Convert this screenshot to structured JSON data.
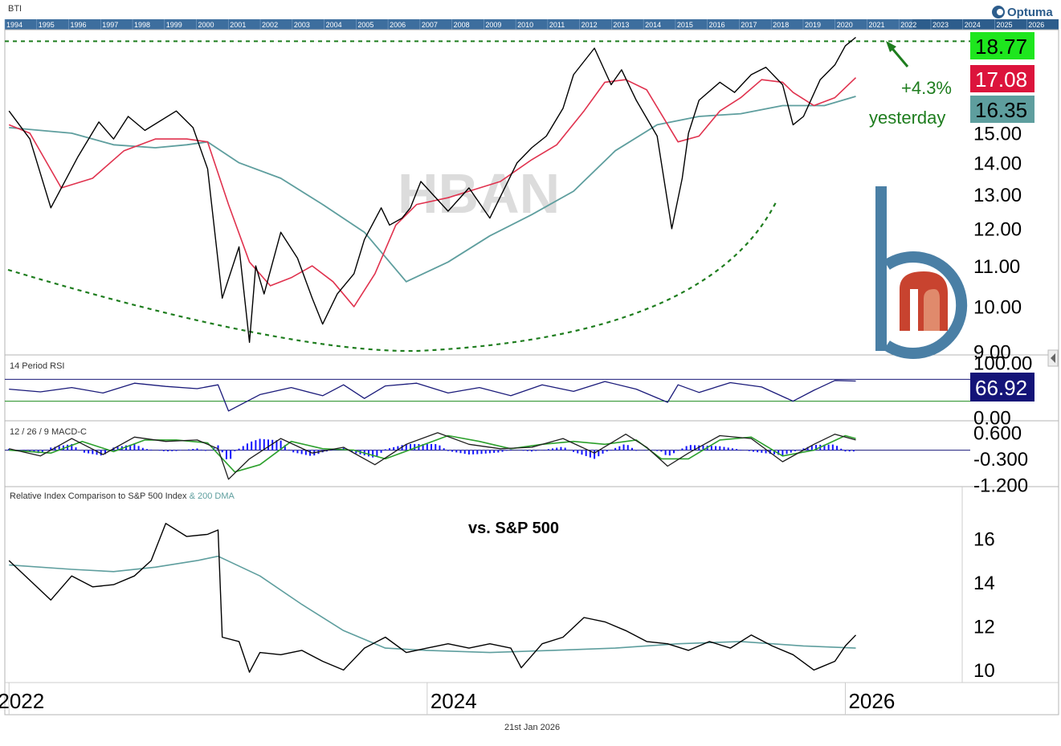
{
  "symbol": "BTI",
  "brand": "Optuma",
  "watermark": "HBAN",
  "date_footer": "21st Jan 2026",
  "colors": {
    "price": "#000000",
    "ma_short": "#e0324e",
    "ma_long": "#5e9e9e",
    "dashed": "#1e7d1e",
    "rsi_line": "#1a1a7a",
    "rsi_upper": "#1a1a7a",
    "rsi_lower": "#1e8c1e",
    "macd_line": "#1e1e1e",
    "macd_signal": "#2ca02c",
    "macd_hist": "#1414ff",
    "badge_last": "#1ee61e",
    "badge_ma_short": "#dc143c",
    "badge_ma_long": "#5e9e9e",
    "badge_rsi": "#141478",
    "timeline_bg": "#2d5d8c",
    "logo_blue": "#4a7fa5",
    "logo_red": "#c8432f",
    "logo_salmon": "#e08a6c"
  },
  "timeline_years": [
    "1994",
    "1995",
    "1996",
    "1997",
    "1998",
    "1999",
    "2000",
    "2001",
    "2002",
    "2003",
    "2004",
    "2005",
    "2006",
    "2007",
    "2008",
    "2009",
    "2010",
    "2011",
    "2012",
    "2013",
    "2014",
    "2015",
    "2016",
    "2017",
    "2018",
    "2019",
    "2020",
    "2021",
    "2022",
    "2023",
    "2024",
    "2025",
    "2026"
  ],
  "annotations": {
    "pct": "+4.3%",
    "when": "yesterday",
    "vs_label": "vs. S&P 500"
  },
  "panel_labels": {
    "rsi": "14 Period RSI",
    "macd": "12 / 26 / 9 MACD-C",
    "rel_main": "Relative Index Comparison to S&P 500 Index",
    "rel_ma": " & 200 DMA"
  },
  "badges": {
    "last": "18.77",
    "ma_short": "17.08",
    "ma_long": "16.35",
    "rsi": "66.92"
  },
  "chart_data": [
    {
      "type": "line",
      "title": "BTI",
      "ylim": [
        9.0,
        19.0
      ],
      "log_scale": true,
      "y_ticks": [
        "9.00",
        "10.00",
        "11.00",
        "12.00",
        "13.00",
        "14.00",
        "15.00",
        "16.00"
      ],
      "resistance_level": 18.6,
      "series": [
        {
          "name": "price",
          "x": [
            2022.0,
            2022.1,
            2022.2,
            2022.33,
            2022.43,
            2022.5,
            2022.57,
            2022.65,
            2022.8,
            2022.88,
            2022.95,
            2023.02,
            2023.1,
            2023.15,
            2023.18,
            2023.22,
            2023.3,
            2023.38,
            2023.45,
            2023.5,
            2023.57,
            2023.65,
            2023.7,
            2023.78,
            2023.82,
            2023.88,
            2023.92,
            2023.97,
            2024.1,
            2024.2,
            2024.3,
            2024.43,
            2024.5,
            2024.57,
            2024.65,
            2024.7,
            2024.8,
            2024.88,
            2024.93,
            2025.0,
            2025.1,
            2025.17,
            2025.22,
            2025.25,
            2025.3,
            2025.4,
            2025.47,
            2025.55,
            2025.62,
            2025.7,
            2025.75,
            2025.8,
            2025.88,
            2025.95,
            2026.0,
            2026.05
          ],
          "y": [
            15.8,
            14.8,
            12.6,
            14.2,
            15.4,
            14.8,
            15.6,
            15.1,
            15.8,
            15.2,
            13.8,
            10.2,
            11.5,
            9.2,
            11.0,
            10.3,
            11.9,
            11.2,
            10.2,
            9.6,
            10.3,
            10.8,
            11.7,
            12.6,
            12.1,
            12.3,
            12.6,
            13.4,
            12.5,
            13.2,
            12.3,
            14.0,
            14.5,
            14.9,
            15.9,
            17.2,
            18.3,
            16.8,
            17.4,
            16.2,
            14.9,
            12.0,
            13.5,
            15.0,
            16.2,
            16.9,
            16.5,
            17.2,
            17.5,
            16.8,
            15.3,
            15.6,
            17.0,
            17.6,
            18.4,
            18.77
          ]
        },
        {
          "name": "ma_short",
          "x": [
            2022.0,
            2022.1,
            2022.25,
            2022.4,
            2022.55,
            2022.7,
            2022.85,
            2022.95,
            2023.05,
            2023.15,
            2023.25,
            2023.35,
            2023.45,
            2023.55,
            2023.65,
            2023.75,
            2023.85,
            2023.95,
            2024.1,
            2024.2,
            2024.35,
            2024.5,
            2024.62,
            2024.75,
            2024.85,
            2024.95,
            2025.05,
            2025.2,
            2025.3,
            2025.4,
            2025.5,
            2025.6,
            2025.7,
            2025.75,
            2025.85,
            2025.95,
            2026.05
          ],
          "y": [
            15.3,
            15.0,
            13.2,
            13.5,
            14.4,
            14.8,
            14.8,
            14.7,
            12.7,
            11.1,
            10.5,
            10.7,
            11.0,
            10.6,
            10.0,
            10.8,
            12.1,
            12.7,
            12.9,
            13.1,
            13.4,
            14.1,
            14.6,
            15.8,
            16.9,
            17.0,
            16.6,
            14.7,
            14.9,
            15.8,
            16.3,
            17.0,
            16.9,
            16.5,
            16.0,
            16.3,
            17.08
          ]
        },
        {
          "name": "ma_long",
          "x": [
            2022.0,
            2022.3,
            2022.5,
            2022.7,
            2022.85,
            2022.95,
            2023.1,
            2023.3,
            2023.5,
            2023.7,
            2023.9,
            2024.1,
            2024.3,
            2024.5,
            2024.7,
            2024.9,
            2025.1,
            2025.3,
            2025.5,
            2025.7,
            2025.9,
            2026.05
          ],
          "y": [
            15.2,
            15.0,
            14.6,
            14.5,
            14.6,
            14.7,
            14.0,
            13.5,
            12.7,
            11.9,
            10.6,
            11.1,
            11.8,
            12.4,
            13.1,
            14.4,
            15.3,
            15.6,
            15.7,
            16.0,
            16.0,
            16.35
          ]
        }
      ]
    },
    {
      "type": "line",
      "title": "14 Period RSI",
      "ylim": [
        0,
        100
      ],
      "y_ticks": [
        "100.00",
        "0.00"
      ],
      "hlines": [
        70,
        30
      ],
      "series": [
        {
          "name": "rsi",
          "x": [
            2022.0,
            2022.15,
            2022.3,
            2022.45,
            2022.6,
            2022.75,
            2022.9,
            2023.0,
            2023.05,
            2023.2,
            2023.35,
            2023.5,
            2023.6,
            2023.7,
            2023.8,
            2023.95,
            2024.1,
            2024.25,
            2024.4,
            2024.55,
            2024.7,
            2024.85,
            2025.0,
            2025.15,
            2025.2,
            2025.3,
            2025.45,
            2025.6,
            2025.75,
            2025.85,
            2025.95,
            2026.05
          ],
          "y": [
            52,
            47,
            55,
            45,
            63,
            57,
            53,
            60,
            12,
            42,
            55,
            40,
            60,
            35,
            58,
            63,
            45,
            55,
            40,
            60,
            48,
            66,
            52,
            28,
            60,
            46,
            64,
            56,
            30,
            50,
            68,
            66.92
          ]
        }
      ]
    },
    {
      "type": "line",
      "title": "12 / 26 / 9 MACD-C",
      "ylim": [
        -1.2,
        0.9
      ],
      "y_ticks": [
        "0.600",
        "-0.300",
        "-1.200"
      ],
      "series": [
        {
          "name": "macd",
          "x": [
            2022.0,
            2022.15,
            2022.3,
            2022.45,
            2022.6,
            2022.75,
            2022.9,
            2023.0,
            2023.05,
            2023.15,
            2023.3,
            2023.45,
            2023.6,
            2023.75,
            2023.9,
            2024.05,
            2024.2,
            2024.35,
            2024.5,
            2024.65,
            2024.8,
            2024.95,
            2025.05,
            2025.15,
            2025.25,
            2025.4,
            2025.55,
            2025.7,
            2025.85,
            2025.95,
            2026.05
          ],
          "y": [
            0.05,
            -0.2,
            0.4,
            -0.15,
            0.45,
            0.3,
            0.35,
            0.05,
            -1.0,
            -0.3,
            0.4,
            -0.1,
            0.1,
            -0.5,
            0.2,
            0.6,
            0.2,
            0.05,
            0.1,
            0.4,
            -0.1,
            0.55,
            0.1,
            -0.55,
            -0.1,
            0.5,
            0.4,
            -0.4,
            0.2,
            0.55,
            0.35
          ]
        },
        {
          "name": "signal",
          "x": [
            2022.0,
            2022.2,
            2022.35,
            2022.5,
            2022.65,
            2022.8,
            2022.95,
            2023.08,
            2023.2,
            2023.35,
            2023.5,
            2023.65,
            2023.8,
            2023.95,
            2024.1,
            2024.25,
            2024.4,
            2024.55,
            2024.7,
            2024.85,
            2025.0,
            2025.12,
            2025.25,
            2025.4,
            2025.55,
            2025.7,
            2025.85,
            2026.0,
            2026.05
          ],
          "y": [
            0.0,
            -0.1,
            0.3,
            -0.05,
            0.35,
            0.35,
            0.25,
            -0.75,
            -0.5,
            0.3,
            0.05,
            0.0,
            -0.3,
            0.1,
            0.5,
            0.3,
            0.05,
            0.2,
            0.3,
            0.2,
            0.35,
            -0.3,
            -0.3,
            0.35,
            0.45,
            -0.2,
            0.0,
            0.5,
            0.4
          ]
        }
      ]
    },
    {
      "type": "line",
      "title": "Relative Index Comparison to S&P 500 Index & 200 DMA",
      "ylim": [
        9.5,
        17.5
      ],
      "y_ticks": [
        "16",
        "14",
        "12",
        "10"
      ],
      "x_ticks": [
        "2022",
        "2024",
        "2026"
      ],
      "annotation": "vs. S&P 500",
      "series": [
        {
          "name": "relative",
          "x": [
            2022.0,
            2022.1,
            2022.2,
            2022.3,
            2022.4,
            2022.5,
            2022.6,
            2022.68,
            2022.75,
            2022.85,
            2022.95,
            2023.0,
            2023.02,
            2023.1,
            2023.15,
            2023.2,
            2023.3,
            2023.4,
            2023.5,
            2023.6,
            2023.65,
            2023.7,
            2023.8,
            2023.9,
            2024.0,
            2024.1,
            2024.2,
            2024.3,
            2024.4,
            2024.45,
            2024.55,
            2024.65,
            2024.75,
            2024.85,
            2024.95,
            2025.05,
            2025.15,
            2025.25,
            2025.35,
            2025.45,
            2025.55,
            2025.65,
            2025.75,
            2025.85,
            2025.95,
            2026.0,
            2026.05
          ],
          "y": [
            15.0,
            14.1,
            13.2,
            14.3,
            13.8,
            13.9,
            14.3,
            15.0,
            16.7,
            16.1,
            16.2,
            16.4,
            11.5,
            11.3,
            9.9,
            10.8,
            10.7,
            10.9,
            10.4,
            10.0,
            10.5,
            11.0,
            11.5,
            10.8,
            11.0,
            11.2,
            11.0,
            11.2,
            11.0,
            10.1,
            11.2,
            11.5,
            12.4,
            12.2,
            11.8,
            11.3,
            11.2,
            10.9,
            11.3,
            11.0,
            11.6,
            11.1,
            10.7,
            10.0,
            10.4,
            11.1,
            11.6
          ]
        },
        {
          "name": "ma",
          "x": [
            2022.0,
            2022.3,
            2022.5,
            2022.7,
            2022.9,
            2023.0,
            2023.2,
            2023.4,
            2023.6,
            2023.8,
            2024.0,
            2024.3,
            2024.6,
            2024.9,
            2025.2,
            2025.5,
            2025.8,
            2026.05
          ],
          "y": [
            14.8,
            14.6,
            14.5,
            14.7,
            15.0,
            15.2,
            14.3,
            13.0,
            11.8,
            11.0,
            10.9,
            10.8,
            10.9,
            11.0,
            11.2,
            11.3,
            11.1,
            11.0
          ]
        }
      ]
    }
  ]
}
